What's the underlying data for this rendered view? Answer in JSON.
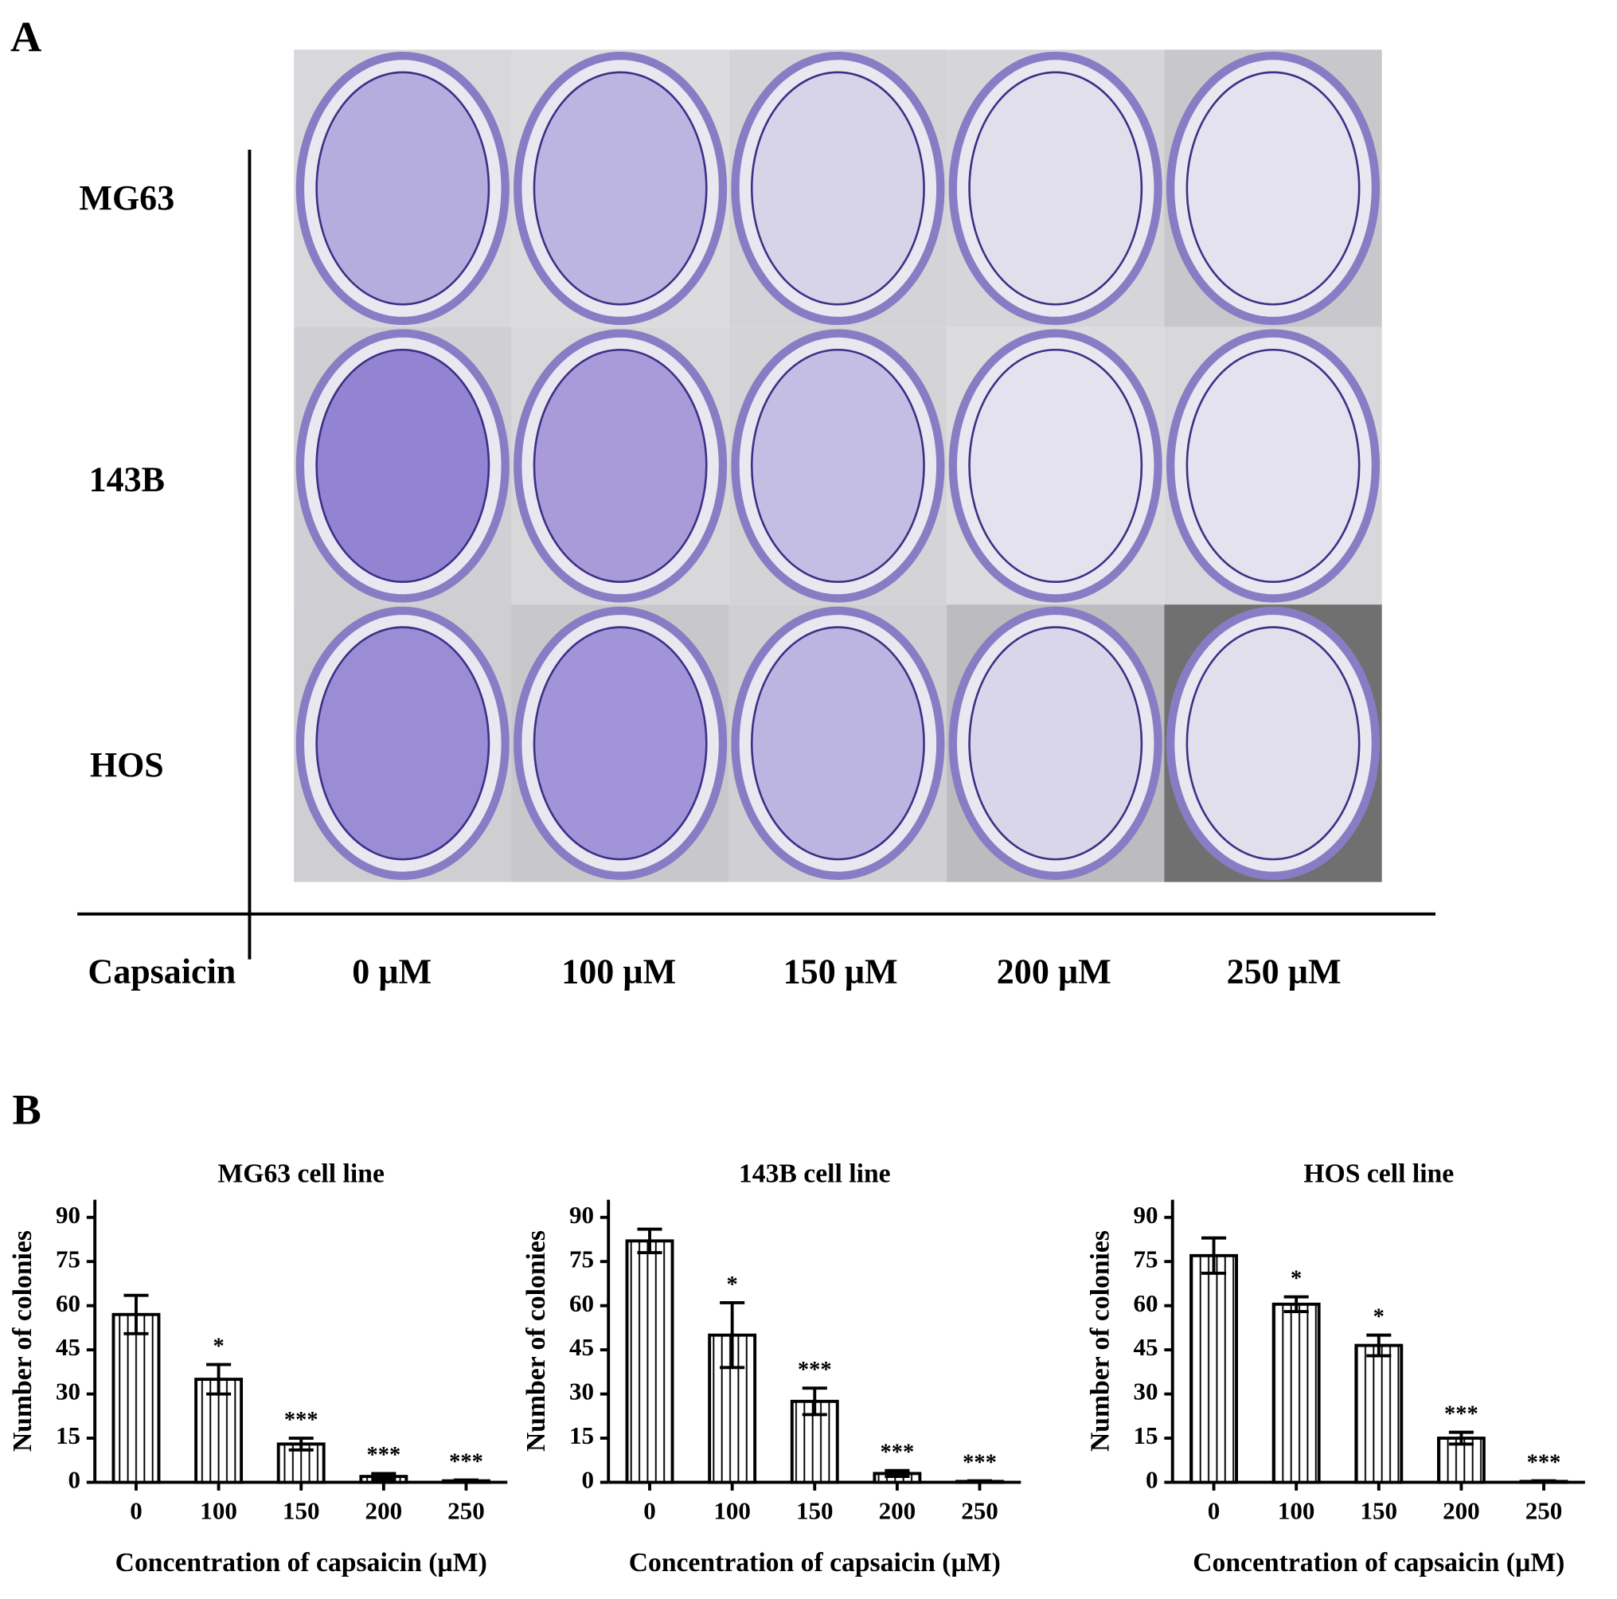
{
  "panel_a": {
    "label": "A",
    "rows": [
      "MG63",
      "143B",
      "HOS"
    ],
    "treatment": "Capsaicin",
    "columns": [
      "0 µM",
      "100 µM",
      "150 µM",
      "200 µM",
      "250 µM"
    ]
  },
  "panel_b_label": "B",
  "chart_data": [
    {
      "type": "bar",
      "title": "MG63 cell line",
      "x_label": "Concentration of capsaicin (µM)",
      "y_label": "Number of colonies",
      "categories": [
        "0",
        "100",
        "150",
        "200",
        "250"
      ],
      "values": [
        57,
        35,
        13,
        2,
        0.5
      ],
      "errors": [
        6.5,
        5,
        2,
        1,
        0.3
      ],
      "significance": [
        null,
        "*",
        "***",
        "***",
        "***"
      ],
      "color": "#000000",
      "ylim": [
        0,
        96
      ],
      "yticks": [
        0,
        15,
        30,
        45,
        60,
        75,
        90
      ]
    },
    {
      "type": "bar",
      "title": "143B cell line",
      "x_label": "Concentration of capsaicin (µM)",
      "y_label": "Number of colonies",
      "categories": [
        "0",
        "100",
        "150",
        "200",
        "250"
      ],
      "values": [
        82,
        50,
        27.5,
        3,
        0.3
      ],
      "errors": [
        4,
        11,
        4.5,
        1,
        0.2
      ],
      "significance": [
        null,
        "*",
        "***",
        "***",
        "***"
      ],
      "color": "#000000",
      "ylim": [
        0,
        96
      ],
      "yticks": [
        0,
        15,
        30,
        45,
        60,
        75,
        90
      ]
    },
    {
      "type": "bar",
      "title": "HOS cell line",
      "x_label": "Concentration of capsaicin (µM)",
      "y_label": "Number of colonies",
      "categories": [
        "0",
        "100",
        "150",
        "200",
        "250"
      ],
      "values": [
        77,
        60.5,
        46.5,
        15,
        0.3
      ],
      "errors": [
        6,
        2.5,
        3.5,
        2,
        0.2
      ],
      "significance": [
        null,
        "*",
        "*",
        "***",
        "***"
      ],
      "color": "#000000",
      "ylim": [
        0,
        96
      ],
      "yticks": [
        0,
        15,
        30,
        45,
        60,
        75,
        90
      ]
    }
  ]
}
